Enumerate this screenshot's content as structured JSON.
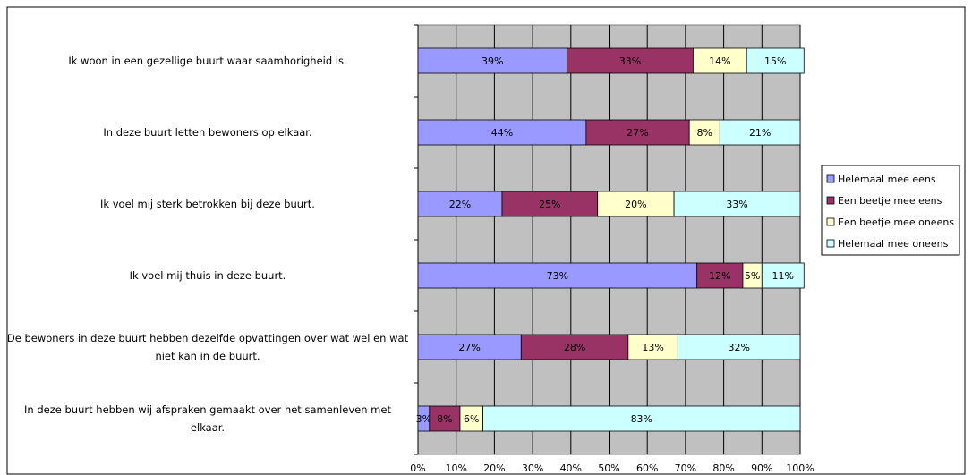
{
  "chart_data": {
    "type": "stacked-bar-horizontal",
    "categories": [
      "Ik woon in een gezellige buurt waar saamhorigheid is.",
      "In deze buurt letten bewoners op elkaar.",
      "Ik voel mij sterk betrokken bij deze buurt.",
      "Ik voel mij thuis in deze buurt.",
      "De bewoners in deze buurt hebben dezelfde opvattingen over wat wel en wat niet kan in de buurt.",
      "In deze buurt hebben wij afspraken gemaakt over het samenleven met elkaar."
    ],
    "series": [
      {
        "name": "Helemaal mee eens",
        "color": "#9999ff",
        "values": [
          39,
          44,
          22,
          73,
          27,
          3
        ],
        "value_labels": [
          "39%",
          "44%",
          "22%",
          "73%",
          "27%",
          "3%"
        ]
      },
      {
        "name": "Een beetje mee eens",
        "color": "#993366",
        "values": [
          33,
          27,
          25,
          12,
          28,
          8
        ],
        "value_labels": [
          "33%",
          "27%",
          "25%",
          "12%",
          "28%",
          "8%"
        ]
      },
      {
        "name": "Een beetje mee oneens",
        "color": "#ffffcc",
        "values": [
          14,
          8,
          20,
          5,
          13,
          6
        ],
        "value_labels": [
          "14%",
          "8%",
          "20%",
          "5%",
          "13%",
          "6%"
        ]
      },
      {
        "name": "Helemaal mee oneens",
        "color": "#ccffff",
        "values": [
          15,
          21,
          33,
          11,
          32,
          83
        ],
        "value_labels": [
          "15%",
          "21%",
          "33%",
          "11%",
          "32%",
          "83%"
        ]
      }
    ],
    "xlim": [
      0,
      100
    ],
    "xticks": [
      {
        "value": 0,
        "label": "0%"
      },
      {
        "value": 10,
        "label": "10%"
      },
      {
        "value": 20,
        "label": "20%"
      },
      {
        "value": 30,
        "label": "30%"
      },
      {
        "value": 40,
        "label": "40%"
      },
      {
        "value": 50,
        "label": "50%"
      },
      {
        "value": 60,
        "label": "60%"
      },
      {
        "value": 70,
        "label": "70%"
      },
      {
        "value": 80,
        "label": "80%"
      },
      {
        "value": 90,
        "label": "90%"
      },
      {
        "value": 100,
        "label": "100%"
      }
    ],
    "grid": true,
    "legend": "right"
  }
}
